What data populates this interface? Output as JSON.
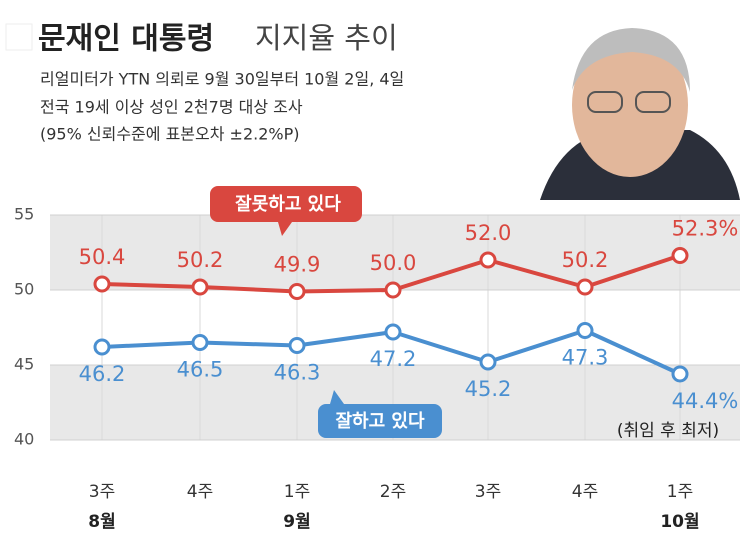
{
  "chart_data": {
    "type": "line",
    "title": "문재인 대통령",
    "title_suffix": "지지율 추이",
    "subtitle": [
      "리얼미터가 YTN 의뢰로 9월 30일부터 10월 2일, 4일",
      "전국 19세 이상 성인 2천7명 대상 조사",
      "(95% 신뢰수준에 표본오차 ±2.2%P)"
    ],
    "categories": [
      "3주",
      "4주",
      "1주",
      "2주",
      "3주",
      "4주",
      "1주"
    ],
    "month_labels": [
      "8월",
      null,
      "9월",
      null,
      null,
      null,
      "10월"
    ],
    "series": [
      {
        "name": "잘못하고 있다",
        "color": "#d9473f",
        "values": [
          50.4,
          50.2,
          49.9,
          50.0,
          52.0,
          50.2,
          52.3
        ],
        "value_labels": [
          "50.4",
          "50.2",
          "49.9",
          "50.0",
          "52.0",
          "50.2",
          "52.3%"
        ]
      },
      {
        "name": "잘하고 있다",
        "color": "#4a8fd0",
        "values": [
          46.2,
          46.5,
          46.3,
          47.2,
          45.2,
          47.3,
          44.4
        ],
        "value_labels": [
          "46.2",
          "46.5",
          "46.3",
          "47.2",
          "45.2",
          "47.3",
          "44.4%"
        ]
      }
    ],
    "annotation": "(취임 후 최저)",
    "ylim": [
      40,
      55
    ],
    "yticks": [
      40,
      45,
      50,
      55
    ],
    "grid": true
  }
}
